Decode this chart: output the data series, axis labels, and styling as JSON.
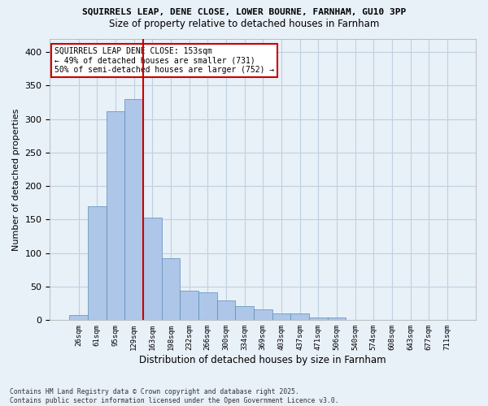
{
  "title1": "SQUIRRELS LEAP, DENE CLOSE, LOWER BOURNE, FARNHAM, GU10 3PP",
  "title2": "Size of property relative to detached houses in Farnham",
  "xlabel": "Distribution of detached houses by size in Farnham",
  "ylabel": "Number of detached properties",
  "footnote": "Contains HM Land Registry data © Crown copyright and database right 2025.\nContains public sector information licensed under the Open Government Licence v3.0.",
  "bin_labels": [
    "26sqm",
    "61sqm",
    "95sqm",
    "129sqm",
    "163sqm",
    "198sqm",
    "232sqm",
    "266sqm",
    "300sqm",
    "334sqm",
    "369sqm",
    "403sqm",
    "437sqm",
    "471sqm",
    "506sqm",
    "540sqm",
    "574sqm",
    "608sqm",
    "643sqm",
    "677sqm",
    "711sqm"
  ],
  "bar_values": [
    8,
    170,
    312,
    330,
    153,
    93,
    44,
    42,
    30,
    21,
    16,
    10,
    10,
    4,
    4,
    1,
    0,
    1,
    0,
    0,
    1
  ],
  "bar_color": "#aec6e8",
  "bar_edge_color": "#5b8db8",
  "grid_color": "#c0d0e0",
  "bg_color": "#e8f0f8",
  "vline_color": "#cc0000",
  "annotation_text": "SQUIRRELS LEAP DENE CLOSE: 153sqm\n← 49% of detached houses are smaller (731)\n50% of semi-detached houses are larger (752) →",
  "annotation_box_color": "#ffffff",
  "annotation_box_edge": "#cc0000",
  "ylim": [
    0,
    420
  ],
  "yticks": [
    0,
    50,
    100,
    150,
    200,
    250,
    300,
    350,
    400
  ]
}
